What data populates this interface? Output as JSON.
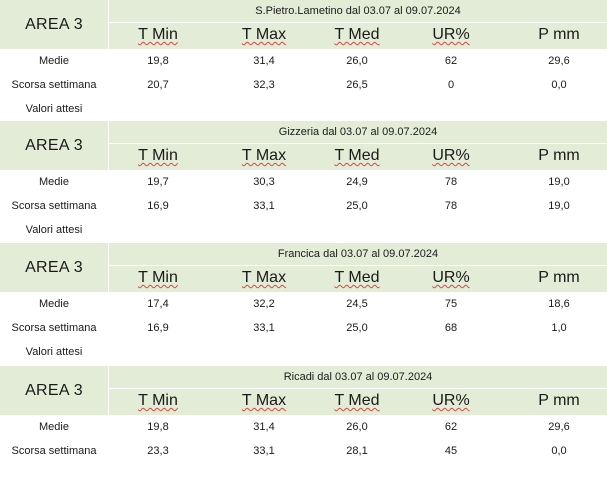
{
  "colors": {
    "header_bg": "#e3ecd7",
    "spell_underline": "#dd4444"
  },
  "column_headers": [
    "T Min",
    "T Max",
    "T Med",
    "UR%",
    "P mm"
  ],
  "row_labels": [
    "Medie",
    "Scorsa settimana",
    "Valori attesi"
  ],
  "blocks": [
    {
      "area": "AREA 3",
      "title": "S.Pietro.Lametino dal 03.07 al 09.07.2024",
      "rows": [
        [
          "19,8",
          "31,4",
          "26,0",
          "62",
          "29,6"
        ],
        [
          "20,7",
          "32,3",
          "26,5",
          "0",
          "0,0"
        ],
        [
          "",
          "",
          "",
          "",
          ""
        ]
      ]
    },
    {
      "area": "AREA 3",
      "title": "Gizzeria dal 03.07 al 09.07.2024",
      "rows": [
        [
          "19,7",
          "30,3",
          "24,9",
          "78",
          "19,0"
        ],
        [
          "16,9",
          "33,1",
          "25,0",
          "78",
          "19,0"
        ],
        [
          "",
          "",
          "",
          "",
          ""
        ]
      ]
    },
    {
      "area": "AREA 3",
      "title": "Francica dal 03.07 al 09.07.2024",
      "rows": [
        [
          "17,4",
          "32,2",
          "24,5",
          "75",
          "18,6"
        ],
        [
          "16,9",
          "33,1",
          "25,0",
          "68",
          "1,0"
        ],
        [
          "",
          "",
          "",
          "",
          ""
        ]
      ]
    },
    {
      "area": "AREA 3",
      "title": "Ricadi  dal 03.07 al 09.07.2024",
      "rows": [
        [
          "19,8",
          "31,4",
          "26,0",
          "62",
          "29,6"
        ],
        [
          "23,3",
          "33,1",
          "28,1",
          "45",
          "0,0"
        ]
      ]
    }
  ]
}
